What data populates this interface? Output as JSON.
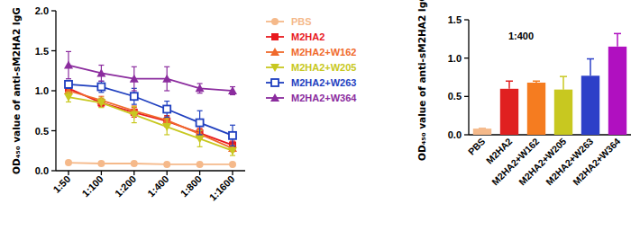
{
  "chart_data": [
    {
      "type": "line",
      "y_label": "OD₄₅₀ value of anti-sM2HA2 IgG",
      "categories": [
        "1:50",
        "1:100",
        "1:200",
        "1:400",
        "1:800",
        "1:1600"
      ],
      "ylim": [
        0,
        2
      ],
      "yticks": [
        {
          "value": 0,
          "label": "0.0"
        },
        {
          "value": 0.5,
          "label": "0.5"
        },
        {
          "value": 1,
          "label": "1.0"
        },
        {
          "value": 1.5,
          "label": "1.5"
        },
        {
          "value": 2,
          "label": "2.0"
        }
      ],
      "legend": "right",
      "series": [
        {
          "name": "PBS",
          "color": "#f5b98a",
          "marker": "circle",
          "values": [
            0.1,
            0.09,
            0.09,
            0.08,
            0.08,
            0.08
          ],
          "errors": [
            0.01,
            0.01,
            0.01,
            0.01,
            0.01,
            0.01
          ]
        },
        {
          "name": "M2HA2",
          "color": "#e8191e",
          "marker": "square",
          "values": [
            1.03,
            0.85,
            0.73,
            0.62,
            0.47,
            0.32
          ],
          "errors": [
            0.05,
            0.05,
            0.06,
            0.07,
            0.06,
            0.05
          ]
        },
        {
          "name": "M2HA2+W162",
          "color": "#f06a2c",
          "marker": "triangle-up",
          "values": [
            1.0,
            0.88,
            0.75,
            0.63,
            0.46,
            0.28
          ],
          "errors": [
            0.05,
            0.05,
            0.06,
            0.05,
            0.06,
            0.04
          ]
        },
        {
          "name": "M2HA2+W205",
          "color": "#c8c820",
          "marker": "triangle-down",
          "values": [
            0.92,
            0.85,
            0.7,
            0.55,
            0.4,
            0.25
          ],
          "errors": [
            0.06,
            0.06,
            0.1,
            0.1,
            0.1,
            0.06
          ]
        },
        {
          "name": "M2HA2+W263",
          "color": "#1f3fbf",
          "marker": "open-square",
          "values": [
            1.08,
            1.05,
            0.93,
            0.77,
            0.6,
            0.44
          ],
          "errors": [
            0.05,
            0.07,
            0.1,
            0.1,
            0.15,
            0.13
          ]
        },
        {
          "name": "M2HA2+W364",
          "color": "#8b2c9e",
          "marker": "triangle-up",
          "values": [
            1.32,
            1.22,
            1.15,
            1.15,
            1.03,
            1.0
          ],
          "errors": [
            0.17,
            0.1,
            0.15,
            0.15,
            0.06,
            0.05
          ]
        }
      ]
    },
    {
      "type": "bar",
      "title": "1:400",
      "y_label": "OD₄₅₀ value of anti-sM2HA2 IgG",
      "categories": [
        "PBS",
        "M2HA2",
        "M2HA2+W162",
        "M2HA2+W205",
        "M2HA2+W263",
        "M2HA2+W364"
      ],
      "values": [
        0.08,
        0.6,
        0.68,
        0.59,
        0.77,
        1.15
      ],
      "errors": [
        0.005,
        0.1,
        0.02,
        0.17,
        0.22,
        0.17
      ],
      "colors": [
        "#f5b98a",
        "#e02020",
        "#f57c20",
        "#c8c820",
        "#2d40c8",
        "#b010c0"
      ],
      "ylim": [
        0,
        1.5
      ],
      "yticks": [
        {
          "value": 0,
          "label": "0.0"
        },
        {
          "value": 0.5,
          "label": "0.5"
        },
        {
          "value": 1,
          "label": "1.0"
        },
        {
          "value": 1.5,
          "label": "1.5"
        }
      ]
    }
  ]
}
